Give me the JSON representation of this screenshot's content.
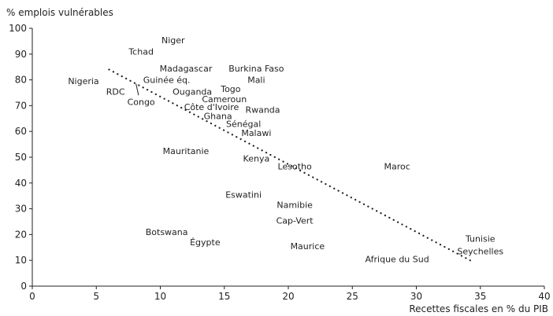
{
  "chart_data": {
    "type": "scatter",
    "title": "",
    "xlabel": "Recettes fiscales en % du PIB",
    "ylabel": "% emplois vulnérables",
    "xlim": [
      0,
      40
    ],
    "ylim": [
      0,
      100
    ],
    "x_ticks": [
      0,
      5,
      10,
      15,
      20,
      25,
      30,
      35,
      40
    ],
    "y_ticks": [
      0,
      10,
      20,
      30,
      40,
      50,
      60,
      70,
      80,
      90,
      100
    ],
    "grid": false,
    "legend": "none",
    "points": [
      {
        "label": "Niger",
        "x": 11.0,
        "y": 95.5
      },
      {
        "label": "Tchad",
        "x": 8.5,
        "y": 91.0
      },
      {
        "label": "Madagascar",
        "x": 12.0,
        "y": 84.5
      },
      {
        "label": "Burkina Faso",
        "x": 17.5,
        "y": 84.5
      },
      {
        "label": "Nigeria",
        "x": 4.0,
        "y": 79.5
      },
      {
        "label": "Guinée éq.",
        "x": 10.5,
        "y": 80.0
      },
      {
        "label": "Mali",
        "x": 17.5,
        "y": 80.0
      },
      {
        "label": "RDC",
        "x": 6.5,
        "y": 75.5
      },
      {
        "label": "Ouganda",
        "x": 12.5,
        "y": 75.5
      },
      {
        "label": "Togo",
        "x": 15.5,
        "y": 76.5
      },
      {
        "label": "Congo",
        "x": 8.5,
        "y": 71.5
      },
      {
        "label": "Cameroun",
        "x": 15.0,
        "y": 72.5
      },
      {
        "label": "Côte d'Ivoire",
        "x": 14.0,
        "y": 69.5
      },
      {
        "label": "Rwanda",
        "x": 18.0,
        "y": 68.5
      },
      {
        "label": "Ghana",
        "x": 14.5,
        "y": 66.0
      },
      {
        "label": "Sénégal",
        "x": 16.5,
        "y": 63.0
      },
      {
        "label": "Malawi",
        "x": 17.5,
        "y": 59.5
      },
      {
        "label": "Mauritanie",
        "x": 12.0,
        "y": 52.5
      },
      {
        "label": "Kenya",
        "x": 17.5,
        "y": 49.5
      },
      {
        "label": "Lesotho",
        "x": 20.5,
        "y": 46.5
      },
      {
        "label": "Maroc",
        "x": 28.5,
        "y": 46.5
      },
      {
        "label": "Eswatini",
        "x": 16.5,
        "y": 35.5
      },
      {
        "label": "Namibie",
        "x": 20.5,
        "y": 31.5
      },
      {
        "label": "Cap-Vert",
        "x": 20.5,
        "y": 25.5
      },
      {
        "label": "Botswana",
        "x": 10.5,
        "y": 21.0
      },
      {
        "label": "Égypte",
        "x": 13.5,
        "y": 17.0
      },
      {
        "label": "Maurice",
        "x": 21.5,
        "y": 15.5
      },
      {
        "label": "Afrique du Sud",
        "x": 28.5,
        "y": 10.5
      },
      {
        "label": "Tunisie",
        "x": 35.0,
        "y": 18.5
      },
      {
        "label": "Seychelles",
        "x": 35.0,
        "y": 13.5
      }
    ],
    "congo_marker": {
      "from": [
        8.1,
        78.5
      ],
      "to": [
        8.3,
        74.0
      ]
    },
    "trendline": {
      "style": "dotted",
      "from": [
        6.0,
        84.0
      ],
      "to": [
        34.2,
        10.0
      ]
    }
  }
}
